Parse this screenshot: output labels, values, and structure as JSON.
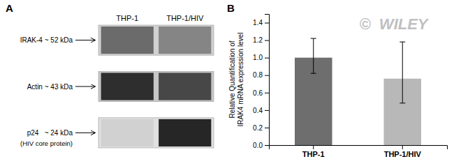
{
  "chart_data": [
    {
      "type": "blot",
      "title": "A",
      "categories": [
        "THP-1",
        "THP-1/HIV"
      ],
      "series": [
        {
          "name": "IRAK-4 ~ 52 kDa",
          "color": "#d1d1d1",
          "values": [
            0.42,
            0.52
          ]
        },
        {
          "name": "Actin ~ 43 kDa",
          "color": "#c7c7c7",
          "values": [
            0.18,
            0.28
          ]
        },
        {
          "name": "p24   ~ 24 kDa",
          "color": "#e0e0e0",
          "values": [
            0.82,
            0.15
          ]
        }
      ],
      "annotations": [
        "(HIV core protein)"
      ]
    },
    {
      "type": "bar",
      "title": "B",
      "categories": [
        "THP-1",
        "THP-1/HIV"
      ],
      "values": [
        1.0,
        0.76
      ],
      "error_plus": [
        0.22,
        0.42
      ],
      "error_minus": [
        0.18,
        0.28
      ],
      "colors": [
        "#6e6e6e",
        "#b8b8b8"
      ],
      "ylabel": "Relative Quantification of\nIRAK4 mRNA expression level",
      "ylim": [
        0,
        1.5
      ],
      "yticks": [
        {
          "value": 0.0,
          "label": "0.0"
        },
        0.2,
        0.4,
        0.6,
        0.8,
        {
          "value": 1.0,
          "label": "1.0"
        },
        1.2,
        1.4
      ],
      "grid": false,
      "annotations": [
        {
          "text": "©  WILEY",
          "color": "#c0c0c0"
        }
      ]
    }
  ]
}
